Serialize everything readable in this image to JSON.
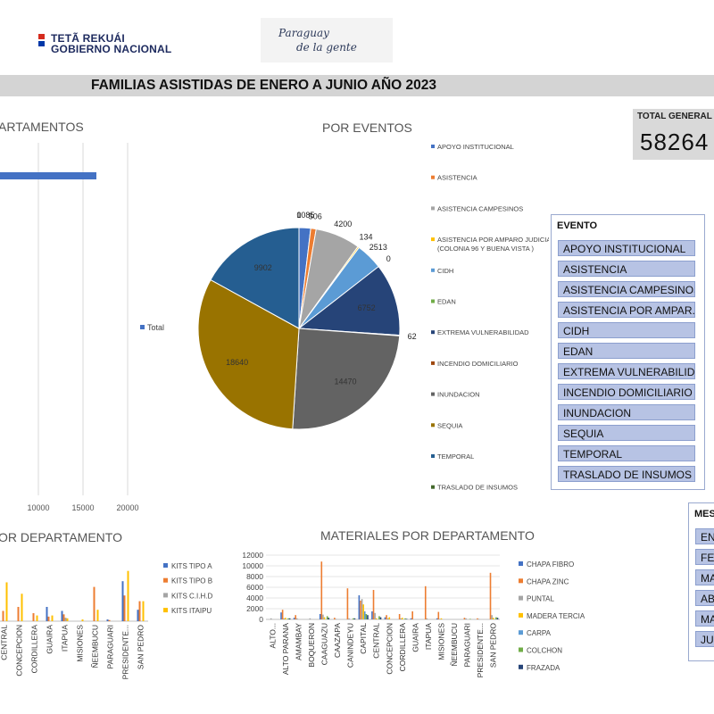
{
  "header": {
    "logo1_lines": [
      "TETÃ REKUÁI",
      "GOBIERNO NACIONAL"
    ],
    "logo2_lines": [
      "Paraguay",
      "de la gente"
    ],
    "title": "FAMILIAS ASISTIDAS DE ENERO A JUNIO AÑO 2023"
  },
  "total": {
    "label": "TOTAL GENERAL",
    "value": "58264"
  },
  "evento_slicer": {
    "title": "EVENTO",
    "items": [
      "APOYO INSTITUCIONAL",
      "ASISTENCIA",
      "ASISTENCIA CAMPESINOS",
      "ASISTENCIA POR AMPAR...",
      "CIDH",
      "EDAN",
      "EXTREMA VULNERABILIDAD",
      "INCENDIO DOMICILIARIO",
      "INUNDACION",
      "SEQUIA",
      "TEMPORAL",
      "TRASLADO DE INSUMOS"
    ]
  },
  "mes_slicer": {
    "title": "MES",
    "items": [
      "EN",
      "FE",
      "MA",
      "AB",
      "MA",
      "JU"
    ]
  },
  "chart_data": [
    {
      "type": "bar",
      "orientation": "horizontal",
      "title": "ARTAMENTOS",
      "series": [
        {
          "name": "Total",
          "values": [
            16500
          ]
        }
      ],
      "xticks": [
        "10000",
        "15000",
        "20000"
      ],
      "xlim": [
        0,
        20000
      ],
      "grid": true,
      "legend": "right"
    },
    {
      "type": "pie",
      "title": "POR EVENTOS",
      "legend": "right",
      "slices": [
        {
          "label": "APOYO INSTITUCIONAL",
          "value": 1085,
          "color": "#4472c4"
        },
        {
          "label": "ASISTENCIA",
          "value": 506,
          "color": "#ed7d31"
        },
        {
          "label": "ASISTENCIA CAMPESINOS",
          "value": 4200,
          "color": "#a5a5a5"
        },
        {
          "label": "ASISTENCIA POR AMPARO JUDICIAL (COLONIA  96 Y BUENA VISTA )",
          "value": 134,
          "color": "#ffc000"
        },
        {
          "label": "CIDH",
          "value": 2513,
          "color": "#5b9bd5"
        },
        {
          "label": "EDAN",
          "value": 0,
          "color": "#70ad47"
        },
        {
          "label": "EXTREMA VULNERABILIDAD",
          "value": 6752,
          "color": "#264478"
        },
        {
          "label": "INCENDIO DOMICILIARIO",
          "value": 62,
          "color": "#9e480e"
        },
        {
          "label": "INUNDACION",
          "value": 14470,
          "color": "#636363"
        },
        {
          "label": "SEQUIA",
          "value": 18640,
          "color": "#997300"
        },
        {
          "label": "TEMPORAL",
          "value": 9902,
          "color": "#255e91"
        },
        {
          "label": "TRASLADO DE INSUMOS",
          "value": 0,
          "color": "#43682b"
        }
      ]
    },
    {
      "type": "bar",
      "title": "OR DEPARTAMENTO",
      "legend": "right",
      "categories": [
        "CENTRAL",
        "CONCEPCION",
        "CORDILLERA",
        "GUAIRA",
        "ITAPUA",
        "MISIONES",
        "ÑEEMBUCU",
        "PARAGUARI",
        "PRESIDENTE...",
        "SAN PEDRO"
      ],
      "series": [
        {
          "name": "KITS TIPO A",
          "color": "#4472c4",
          "values": [
            0,
            0,
            0,
            2500,
            1800,
            0,
            0,
            300,
            7000,
            2000
          ]
        },
        {
          "name": "KITS TIPO B",
          "color": "#ed7d31",
          "values": [
            1800,
            2500,
            1400,
            800,
            1200,
            0,
            6000,
            200,
            4500,
            3500
          ]
        },
        {
          "name": "KITS C.I.H.D",
          "color": "#a5a5a5",
          "values": [
            0,
            0,
            0,
            0,
            600,
            0,
            0,
            0,
            0,
            0
          ]
        },
        {
          "name": "KITS ITAIPU",
          "color": "#ffc000",
          "values": [
            6800,
            4800,
            1000,
            1000,
            500,
            300,
            2000,
            0,
            8800,
            3500
          ]
        }
      ],
      "ylim": [
        0,
        10000
      ]
    },
    {
      "type": "bar",
      "title": "MATERIALES POR DEPARTAMENTO",
      "legend": "right",
      "categories": [
        "ALTO...",
        "ALTO PARANA",
        "AMAMBAY",
        "BOQUERON",
        "CAAGUAZU",
        "CAAZAPA",
        "CANINDEYU",
        "CAPITAL",
        "CENTRAL",
        "CONCEPCION",
        "CORDILLERA",
        "GUAIRA",
        "ITAPUA",
        "MISIONES",
        "ÑEEMBUCU",
        "PARAGUARI",
        "PRESIDENTE...",
        "SAN PEDRO"
      ],
      "series": [
        {
          "name": "CHAPA FIBRO",
          "color": "#4472c4",
          "values": [
            0,
            1300,
            300,
            0,
            1000,
            0,
            0,
            4500,
            1500,
            400,
            0,
            200,
            0,
            200,
            0,
            0,
            0,
            0
          ]
        },
        {
          "name": "CHAPA ZINC",
          "color": "#ed7d31",
          "values": [
            0,
            1800,
            800,
            0,
            10800,
            300,
            5800,
            3500,
            5500,
            800,
            1000,
            1500,
            6200,
            1400,
            0,
            300,
            200,
            8700
          ]
        },
        {
          "name": "PUNTAL",
          "color": "#a5a5a5",
          "values": [
            200,
            200,
            200,
            200,
            900,
            100,
            200,
            3800,
            1200,
            200,
            200,
            0,
            200,
            100,
            0,
            200,
            100,
            800
          ]
        },
        {
          "name": "MADERA TERCIADA",
          "color": "#ffc000",
          "values": [
            0,
            300,
            0,
            0,
            400,
            0,
            0,
            2800,
            200,
            400,
            300,
            0,
            0,
            200,
            0,
            0,
            0,
            300
          ]
        },
        {
          "name": "CARPA",
          "color": "#5b9bd5",
          "values": [
            0,
            0,
            0,
            0,
            0,
            0,
            0,
            1500,
            0,
            0,
            0,
            0,
            0,
            0,
            0,
            0,
            0,
            0
          ]
        },
        {
          "name": "COLCHON",
          "color": "#70ad47",
          "values": [
            0,
            200,
            0,
            0,
            600,
            0,
            200,
            1000,
            600,
            0,
            200,
            0,
            0,
            0,
            0,
            100,
            0,
            400
          ]
        },
        {
          "name": "FRAZADA",
          "color": "#264478",
          "values": [
            0,
            200,
            0,
            0,
            300,
            0,
            200,
            800,
            400,
            0,
            100,
            0,
            0,
            0,
            0,
            0,
            0,
            300
          ]
        }
      ],
      "yticks": [
        "0",
        "2000",
        "4000",
        "6000",
        "8000",
        "10000",
        "12000"
      ],
      "ylim": [
        0,
        12000
      ]
    }
  ]
}
